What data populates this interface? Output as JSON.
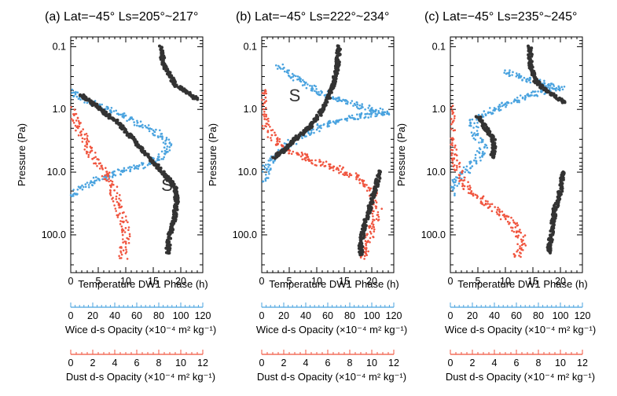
{
  "figure": {
    "y_axis_label": "Pressure (Pa)",
    "x_axis_label": "Temperature DW1 Phase (h)",
    "wice_axis_label": "Wice d-s Opacity (×10⁻⁴ m² kg⁻¹)",
    "dust_axis_label": "Dust d-s Opacity (×10⁻⁴ m² kg⁻¹)",
    "colors": {
      "temperature": "#333333",
      "wice": "#4aa3df",
      "dust": "#f0553f"
    }
  },
  "chart_data": [
    {
      "type": "scatter",
      "title": "(a) Lat=−45° Ls=205°~217°",
      "annotation": "S",
      "annotation_pos": {
        "x": 17.5,
        "y": 20
      },
      "xlim": [
        0,
        24
      ],
      "ylim": [
        400,
        0.07
      ],
      "y_scale": "log",
      "x_ticks": [
        0,
        5,
        10,
        15,
        20
      ],
      "y_ticks": [
        0.1,
        1.0,
        10.0,
        100.0
      ],
      "y_tick_labels": [
        "0.1",
        "1.0",
        "10.0",
        "100.0"
      ],
      "wice_axis": {
        "ticks": [
          0,
          20,
          40,
          60,
          80,
          100,
          120
        ],
        "lim": [
          0,
          120
        ]
      },
      "dust_axis": {
        "ticks": [
          0,
          2,
          4,
          6,
          8,
          10,
          12
        ],
        "lim": [
          0,
          12
        ]
      },
      "series": [
        {
          "key": "temperature",
          "points": [
            [
              16.2,
              0.1
            ],
            [
              17,
              0.2
            ],
            [
              19,
              0.4
            ],
            [
              23,
              0.7
            ],
            [
              2,
              0.6
            ],
            [
              4,
              0.8
            ],
            [
              6,
              1.1
            ],
            [
              8.5,
              1.6
            ],
            [
              10.5,
              2.5
            ],
            [
              12.5,
              4
            ],
            [
              15,
              7
            ],
            [
              17.5,
              12
            ],
            [
              19,
              18
            ],
            [
              19.3,
              30
            ],
            [
              18.7,
              60
            ],
            [
              18,
              100
            ],
            [
              17.7,
              160
            ],
            [
              17.6,
              200
            ]
          ]
        },
        {
          "key": "wice",
          "points": [
            [
              0,
              0.5
            ],
            [
              2,
              0.7
            ],
            [
              6,
              0.9
            ],
            [
              10,
              1.3
            ],
            [
              14,
              2
            ],
            [
              17,
              2.8
            ],
            [
              18,
              4
            ],
            [
              16,
              6
            ],
            [
              13,
              8
            ],
            [
              9,
              10
            ],
            [
              5,
              13
            ],
            [
              2,
              18
            ],
            [
              0,
              25
            ]
          ]
        },
        {
          "key": "dust",
          "points": [
            [
              0,
              1
            ],
            [
              1.5,
              2
            ],
            [
              3,
              4
            ],
            [
              4.5,
              7
            ],
            [
              6,
              10
            ],
            [
              7.5,
              15
            ],
            [
              8.5,
              30
            ],
            [
              9.5,
              60
            ],
            [
              10,
              100
            ],
            [
              9.8,
              160
            ],
            [
              9.6,
              250
            ]
          ]
        }
      ]
    },
    {
      "type": "scatter",
      "title": "(b) Lat=−45° Ls=222°~234°",
      "annotation": "S",
      "annotation_pos": {
        "x": 6,
        "y": 0.75
      },
      "xlim": [
        0,
        24
      ],
      "ylim": [
        400,
        0.07
      ],
      "y_scale": "log",
      "x_ticks": [
        0,
        5,
        10,
        15,
        20
      ],
      "y_ticks": [
        0.1,
        1.0,
        10.0,
        100.0
      ],
      "y_tick_labels": [
        "0.1",
        "1.0",
        "10.0",
        "100.0"
      ],
      "wice_axis": {
        "ticks": [
          0,
          20,
          40,
          60,
          80,
          100,
          120
        ],
        "lim": [
          0,
          120
        ]
      },
      "dust_axis": {
        "ticks": [
          0,
          2,
          4,
          6,
          8,
          10,
          12
        ],
        "lim": [
          0,
          12
        ]
      },
      "series": [
        {
          "key": "temperature",
          "points": [
            [
              14,
              0.1
            ],
            [
              13.8,
              0.2
            ],
            [
              13,
              0.4
            ],
            [
              12,
              0.7
            ],
            [
              10.5,
              1.2
            ],
            [
              8.5,
              2
            ],
            [
              6,
              3
            ],
            [
              4,
              4.5
            ],
            [
              2,
              6
            ],
            [
              21.5,
              10
            ],
            [
              20.5,
              20
            ],
            [
              19.5,
              40
            ],
            [
              18.5,
              80
            ],
            [
              18,
              150
            ],
            [
              18,
              220
            ]
          ]
        },
        {
          "key": "wice",
          "points": [
            [
              3,
              0.2
            ],
            [
              6,
              0.3
            ],
            [
              9,
              0.45
            ],
            [
              12,
              0.6
            ],
            [
              16,
              0.8
            ],
            [
              20,
              1
            ],
            [
              23,
              1.1
            ],
            [
              15,
              1.4
            ],
            [
              10,
              2
            ],
            [
              6,
              3
            ],
            [
              3,
              5
            ],
            [
              1,
              8
            ],
            [
              0,
              15
            ]
          ]
        },
        {
          "key": "dust",
          "points": [
            [
              0,
              0.5
            ],
            [
              0,
              1
            ],
            [
              1,
              2
            ],
            [
              3,
              3.5
            ],
            [
              6,
              5
            ],
            [
              10,
              7
            ],
            [
              14,
              9
            ],
            [
              18,
              13
            ],
            [
              20,
              20
            ],
            [
              21,
              40
            ],
            [
              20,
              80
            ],
            [
              19,
              150
            ],
            [
              18,
              250
            ]
          ]
        }
      ]
    },
    {
      "type": "scatter",
      "title": "(c) Lat=−45° Ls=235°~245°",
      "annotation": "",
      "xlim": [
        0,
        24
      ],
      "ylim": [
        400,
        0.07
      ],
      "y_scale": "log",
      "x_ticks": [
        0,
        5,
        10,
        15,
        20
      ],
      "y_ticks": [
        0.1,
        1.0,
        10.0,
        100.0
      ],
      "y_tick_labels": [
        "0.1",
        "1.0",
        "10.0",
        "100.0"
      ],
      "wice_axis": {
        "ticks": [
          0,
          20,
          40,
          60,
          80,
          100,
          120
        ],
        "lim": [
          0,
          120
        ]
      },
      "dust_axis": {
        "ticks": [
          0,
          2,
          4,
          6,
          8,
          10,
          12
        ],
        "lim": [
          0,
          12
        ]
      },
      "series": [
        {
          "key": "temperature",
          "points": [
            [
              14.5,
              0.1
            ],
            [
              14.5,
              0.2
            ],
            [
              15.5,
              0.35
            ],
            [
              18,
              0.55
            ],
            [
              21,
              0.8
            ],
            [
              5,
              1.3
            ],
            [
              6.5,
              2
            ],
            [
              7.8,
              3
            ],
            [
              8,
              4.5
            ],
            [
              7.5,
              6
            ],
            [
              20.5,
              10
            ],
            [
              20,
              20
            ],
            [
              19,
              40
            ],
            [
              18.5,
              80
            ],
            [
              18,
              150
            ],
            [
              17.8,
              200
            ]
          ]
        },
        {
          "key": "wice",
          "points": [
            [
              10,
              0.25
            ],
            [
              15,
              0.35
            ],
            [
              20,
              0.45
            ],
            [
              14,
              0.6
            ],
            [
              8,
              1
            ],
            [
              4,
              1.6
            ],
            [
              4.5,
              2.5
            ],
            [
              6,
              4
            ],
            [
              5,
              6
            ],
            [
              3,
              9
            ],
            [
              1,
              14
            ],
            [
              0,
              25
            ]
          ]
        },
        {
          "key": "dust",
          "points": [
            [
              0,
              0.8
            ],
            [
              0,
              2
            ],
            [
              0.5,
              5
            ],
            [
              1.5,
              10
            ],
            [
              3,
              18
            ],
            [
              6,
              30
            ],
            [
              9,
              45
            ],
            [
              11.5,
              70
            ],
            [
              13,
              110
            ],
            [
              13,
              160
            ],
            [
              12,
              230
            ]
          ]
        }
      ]
    }
  ]
}
